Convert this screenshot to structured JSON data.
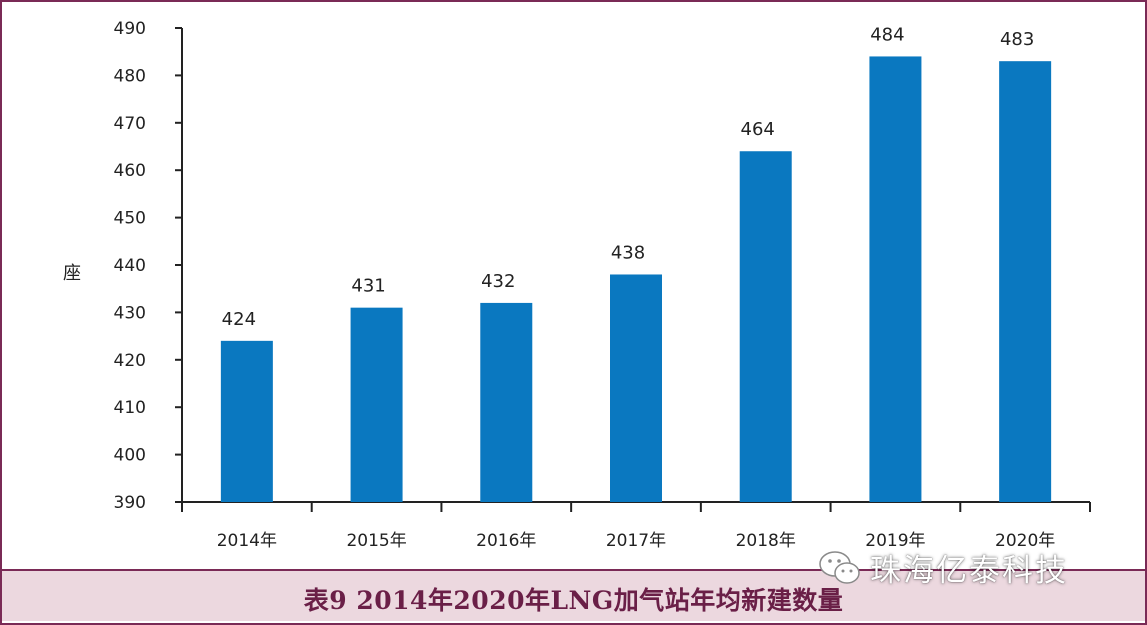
{
  "chart_data": {
    "type": "bar",
    "title": "",
    "xlabel": "",
    "ylabel": "座",
    "ylim": [
      390,
      490
    ],
    "yticks": [
      390,
      400,
      410,
      420,
      430,
      440,
      450,
      460,
      470,
      480,
      490
    ],
    "categories": [
      "2014年",
      "2015年",
      "2016年",
      "2017年",
      "2018年",
      "2019年",
      "2020年"
    ],
    "values": [
      424,
      431,
      432,
      438,
      464,
      484,
      483
    ],
    "data_labels": [
      "424",
      "431",
      "432",
      "438",
      "464",
      "484",
      "483"
    ],
    "bar_color": "#0a78c0",
    "grid": false,
    "legend": "none"
  },
  "caption": "表9 2014年2020年LNG加气站年均新建数量",
  "watermark": {
    "text": "珠海亿泰科技",
    "icon": "wechat-icon"
  },
  "colors": {
    "frame": "#7a2a56",
    "caption_band": "#ecd8df",
    "caption_text": "#6a1f47",
    "axis": "#222222"
  }
}
